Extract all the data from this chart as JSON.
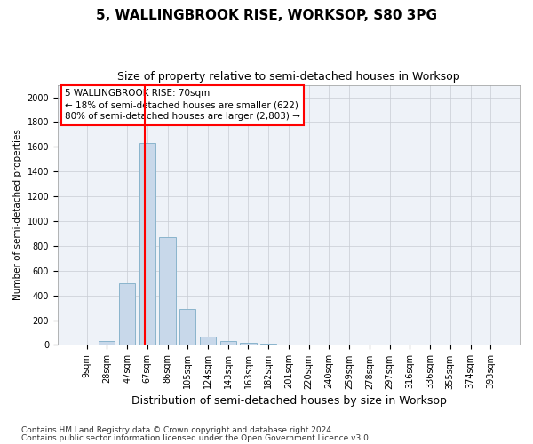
{
  "title": "5, WALLINGBROOK RISE, WORKSOP, S80 3PG",
  "subtitle": "Size of property relative to semi-detached houses in Worksop",
  "xlabel": "Distribution of semi-detached houses by size in Worksop",
  "ylabel": "Number of semi-detached properties",
  "footnote1": "Contains HM Land Registry data © Crown copyright and database right 2024.",
  "footnote2": "Contains public sector information licensed under the Open Government Licence v3.0.",
  "property_label": "5 WALLINGBROOK RISE: 70sqm",
  "smaller_pct": "← 18% of semi-detached houses are smaller (622)",
  "larger_pct": "80% of semi-detached houses are larger (2,803) →",
  "bar_color": "#c8d8ea",
  "bar_edge_color": "#8ab4cc",
  "line_color": "red",
  "categories": [
    "9sqm",
    "28sqm",
    "47sqm",
    "67sqm",
    "86sqm",
    "105sqm",
    "124sqm",
    "143sqm",
    "163sqm",
    "182sqm",
    "201sqm",
    "220sqm",
    "240sqm",
    "259sqm",
    "278sqm",
    "297sqm",
    "316sqm",
    "336sqm",
    "355sqm",
    "374sqm",
    "393sqm"
  ],
  "values": [
    0,
    30,
    500,
    1630,
    870,
    290,
    65,
    35,
    20,
    10,
    0,
    0,
    0,
    0,
    0,
    0,
    0,
    0,
    0,
    0,
    0
  ],
  "ylim": [
    0,
    2100
  ],
  "yticks": [
    0,
    200,
    400,
    600,
    800,
    1000,
    1200,
    1400,
    1600,
    1800,
    2000
  ],
  "property_line_x": 2.88,
  "title_fontsize": 11,
  "subtitle_fontsize": 9,
  "xlabel_fontsize": 9,
  "ylabel_fontsize": 7.5,
  "tick_fontsize": 7,
  "annot_fontsize": 7.5,
  "footnote_fontsize": 6.5
}
